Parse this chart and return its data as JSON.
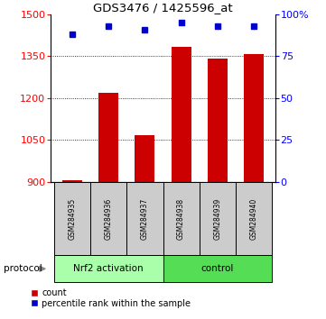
{
  "title": "GDS3476 / 1425596_at",
  "samples": [
    "GSM284935",
    "GSM284936",
    "GSM284937",
    "GSM284938",
    "GSM284939",
    "GSM284940"
  ],
  "bar_values": [
    905,
    1220,
    1068,
    1385,
    1340,
    1358
  ],
  "percentile_values": [
    88,
    93,
    91,
    95,
    93,
    93
  ],
  "ylim_left": [
    900,
    1500
  ],
  "ylim_right": [
    0,
    100
  ],
  "yticks_left": [
    900,
    1050,
    1200,
    1350,
    1500
  ],
  "yticks_right": [
    0,
    25,
    50,
    75,
    100
  ],
  "ytick_labels_right": [
    "0",
    "25",
    "50",
    "75",
    "100%"
  ],
  "bar_color": "#cc0000",
  "dot_color": "#0000cc",
  "group1_label": "Nrf2 activation",
  "group2_label": "control",
  "protocol_label": "protocol",
  "group1_bg": "#aaffaa",
  "group2_bg": "#55dd55",
  "sample_bg": "#cccccc",
  "legend_count_label": "count",
  "legend_pct_label": "percentile rank within the sample",
  "bar_width": 0.55,
  "fig_width": 3.61,
  "fig_height": 3.54,
  "dpi": 100
}
